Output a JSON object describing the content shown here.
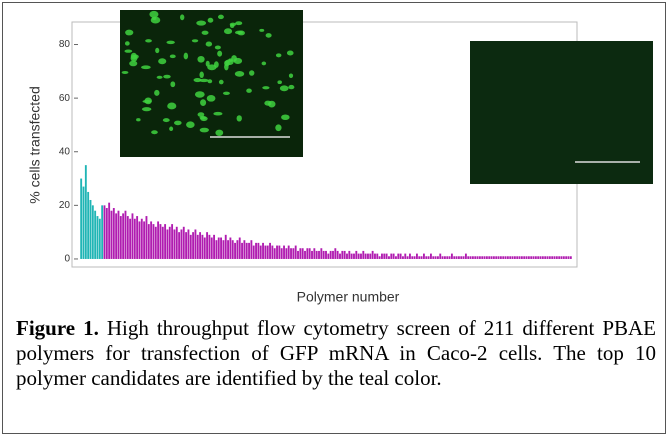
{
  "chart_data": {
    "type": "bar",
    "y_label": "% cells transfected",
    "x_label": "Polymer number",
    "ylim": [
      -3,
      88.4
    ],
    "yticks": [
      0,
      20,
      40,
      60,
      80
    ],
    "series": [
      {
        "color": "#1fb5b5",
        "values": [
          30,
          27,
          35,
          25,
          22,
          20,
          18,
          16,
          15,
          20
        ]
      },
      {
        "color": "#b01cb0",
        "values": [
          20,
          19,
          21,
          18,
          19,
          17,
          18,
          16,
          17,
          18,
          16,
          15,
          17,
          15,
          16,
          14,
          15,
          14,
          16,
          13,
          14,
          13,
          12,
          14,
          13,
          12,
          13,
          11,
          12,
          13,
          11,
          12,
          10,
          11,
          12,
          10,
          11,
          9,
          10,
          11,
          9,
          10,
          9,
          8,
          10,
          9,
          8,
          9,
          7,
          8,
          8,
          7,
          9,
          7,
          8,
          7,
          6,
          7,
          8,
          6,
          7,
          6,
          6,
          7,
          5,
          6,
          6,
          5,
          6,
          5,
          5,
          6,
          5,
          4,
          5,
          5,
          4,
          5,
          4,
          5,
          4,
          4,
          5,
          3,
          4,
          4,
          3,
          4,
          4,
          3,
          4,
          3,
          3,
          4,
          3,
          3,
          2,
          3,
          3,
          4,
          3,
          2,
          3,
          3,
          2,
          3,
          2,
          2,
          3,
          2,
          2,
          3,
          2,
          2,
          2,
          3,
          2,
          2,
          1,
          2,
          2,
          2,
          1,
          2,
          2,
          1,
          2,
          2,
          1,
          2,
          1,
          2,
          1,
          1,
          2,
          1,
          1,
          2,
          1,
          1,
          2,
          1,
          1,
          1,
          2,
          1,
          1,
          1,
          1,
          2,
          1,
          1,
          1,
          1,
          1,
          2,
          1,
          1,
          1,
          1,
          1,
          1,
          1,
          1,
          1,
          1,
          1,
          1,
          1,
          1,
          1,
          1,
          1,
          1,
          1,
          1,
          1,
          1,
          1,
          1,
          1,
          1,
          1,
          1,
          1,
          1,
          1,
          1,
          1,
          1,
          1,
          1,
          1,
          1,
          1,
          1,
          1,
          1,
          1,
          1,
          1
        ]
      }
    ]
  },
  "caption": {
    "label": "Figure 1.",
    "text": " High throughput flow cytometry screen of 211 different PBAE polymers for transfection of GFP mRNA in Caco-2 cells. The top 10 polymer candidates are identified by the teal color."
  }
}
